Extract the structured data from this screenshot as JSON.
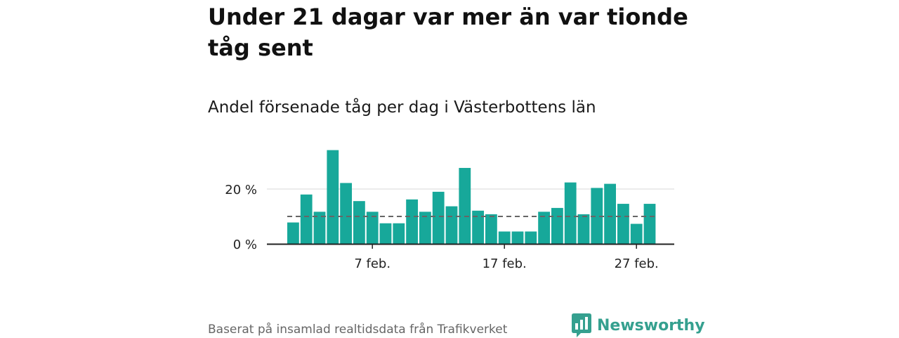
{
  "title": "Under 21 dagar var mer än var tionde tåg sent",
  "subtitle": "Andel försenade tåg per dag i Västerbottens län",
  "source": "Baserat på insamlad realtidsdata från Trafikverket",
  "brand": {
    "name": "Newsworthy",
    "icon": "bar-chart-logo-icon",
    "color": "#35a08f"
  },
  "colors": {
    "bar": "#17a89a",
    "reference_line": "#666666",
    "grid": "#d9d9d9",
    "axis": "#222222"
  },
  "chart_data": {
    "type": "bar",
    "categories": [
      "1 feb.",
      "2 feb.",
      "3 feb.",
      "4 feb.",
      "5 feb.",
      "6 feb.",
      "7 feb.",
      "8 feb.",
      "9 feb.",
      "10 feb.",
      "11 feb.",
      "12 feb.",
      "13 feb.",
      "14 feb.",
      "15 feb.",
      "16 feb.",
      "17 feb.",
      "18 feb.",
      "19 feb.",
      "20 feb.",
      "21 feb.",
      "22 feb.",
      "23 feb.",
      "24 feb.",
      "25 feb.",
      "26 feb.",
      "27 feb.",
      "28 feb."
    ],
    "values": [
      7.8,
      18,
      11.7,
      34.2,
      22.2,
      15.6,
      11.7,
      7.5,
      7.5,
      16.2,
      11.7,
      19,
      13.7,
      27.7,
      12.1,
      10.8,
      4.5,
      4.5,
      4.5,
      11.7,
      13.1,
      22.4,
      10.8,
      20.4,
      21.9,
      14.6,
      7.3,
      14.6
    ],
    "reference_line": 10,
    "x_ticks": [
      {
        "category": "7 feb.",
        "label": "7 feb."
      },
      {
        "category": "17 feb.",
        "label": "17 feb."
      },
      {
        "category": "27 feb.",
        "label": "27 feb."
      }
    ],
    "y_ticks": [
      {
        "value": 0,
        "label": "0 %"
      },
      {
        "value": 20,
        "label": "20 %"
      }
    ],
    "ylim": [
      0,
      36
    ],
    "xlabel": "",
    "ylabel": "",
    "grid": true
  }
}
